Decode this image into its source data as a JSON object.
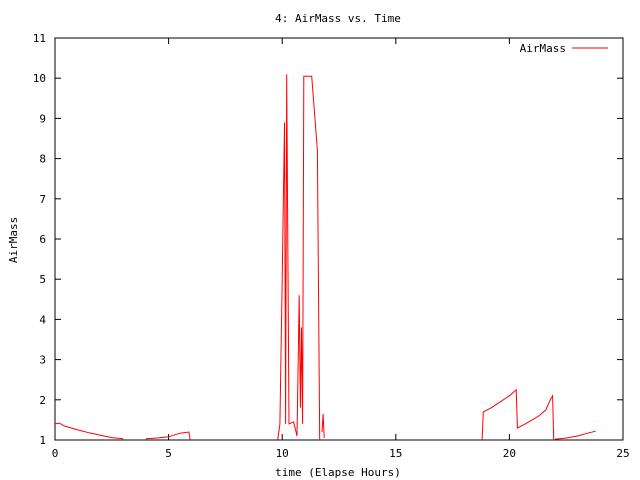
{
  "chart_data": {
    "type": "line",
    "title": "4: AirMass vs. Time",
    "xlabel": "time (Elapse Hours)",
    "ylabel": "AirMass",
    "xlim": [
      0,
      25
    ],
    "ylim": [
      1,
      11
    ],
    "xticks": [
      0,
      5,
      10,
      15,
      20,
      25
    ],
    "yticks": [
      1,
      2,
      3,
      4,
      5,
      6,
      7,
      8,
      9,
      10,
      11
    ],
    "grid": false,
    "legend_position": "top-right",
    "series": [
      {
        "name": "AirMass",
        "color": "#ff0000",
        "segments": [
          [
            [
              0.0,
              1.4
            ],
            [
              0.2,
              1.42
            ],
            [
              0.4,
              1.35
            ],
            [
              0.7,
              1.3
            ],
            [
              1.0,
              1.25
            ],
            [
              1.5,
              1.18
            ],
            [
              2.0,
              1.12
            ],
            [
              2.5,
              1.06
            ],
            [
              3.0,
              1.03
            ]
          ],
          [
            [
              4.0,
              1.03
            ],
            [
              4.5,
              1.05
            ],
            [
              5.0,
              1.08
            ],
            [
              5.5,
              1.17
            ],
            [
              5.9,
              1.2
            ],
            [
              5.95,
              1.0
            ]
          ],
          [
            [
              9.8,
              1.0
            ],
            [
              9.9,
              1.4
            ],
            [
              10.0,
              5.0
            ],
            [
              10.1,
              8.9
            ],
            [
              10.15,
              1.4
            ],
            [
              10.2,
              10.1
            ],
            [
              10.3,
              1.4
            ],
            [
              10.5,
              1.45
            ],
            [
              10.65,
              1.1
            ],
            [
              10.75,
              4.6
            ],
            [
              10.8,
              1.8
            ],
            [
              10.85,
              3.8
            ],
            [
              10.9,
              1.4
            ],
            [
              10.95,
              10.05
            ],
            [
              11.0,
              10.05
            ],
            [
              11.3,
              10.05
            ],
            [
              11.55,
              8.2
            ],
            [
              11.65,
              1.0
            ]
          ],
          [
            [
              11.75,
              1.2
            ],
            [
              11.8,
              1.65
            ],
            [
              11.85,
              1.05
            ]
          ],
          [
            [
              18.8,
              1.0
            ],
            [
              18.85,
              1.7
            ],
            [
              19.2,
              1.8
            ],
            [
              19.6,
              1.95
            ],
            [
              20.0,
              2.1
            ],
            [
              20.3,
              2.25
            ],
            [
              20.35,
              1.3
            ],
            [
              20.7,
              1.4
            ],
            [
              21.0,
              1.5
            ],
            [
              21.3,
              1.6
            ],
            [
              21.6,
              1.75
            ],
            [
              21.8,
              2.0
            ],
            [
              21.9,
              2.1
            ],
            [
              21.95,
              1.0
            ]
          ],
          [
            [
              22.0,
              1.02
            ],
            [
              22.5,
              1.05
            ],
            [
              23.0,
              1.1
            ],
            [
              23.5,
              1.18
            ],
            [
              23.8,
              1.22
            ]
          ]
        ]
      }
    ]
  }
}
